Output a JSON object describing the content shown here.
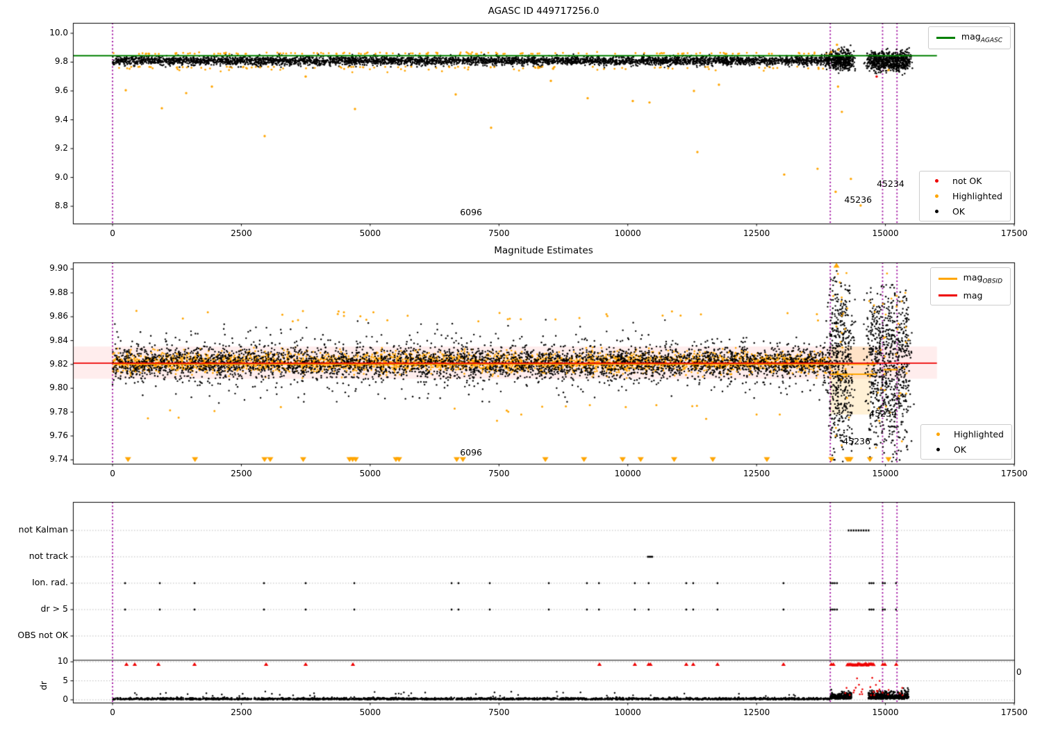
{
  "colors": {
    "green": "#008000",
    "red": "#ee0000",
    "orange": "#ffa500",
    "black": "#000000",
    "purple": "#9b009b",
    "grid": "#bbbbbb",
    "mag_band": "rgba(255,0,0,0.07)",
    "obsid_band": "rgba(255,166,0,0.16)"
  },
  "x_axis": {
    "lim": [
      -769,
      17500
    ],
    "ticks": [
      0,
      2500,
      5000,
      7500,
      10000,
      12500,
      15000,
      17500
    ],
    "tick_labels": [
      "0",
      "2500",
      "5000",
      "7500",
      "10000",
      "12500",
      "15000",
      "17500"
    ]
  },
  "vlines_x": [
    0,
    13930,
    14945,
    15225
  ],
  "chart_data": [
    {
      "type": "scatter",
      "title": "AGASC ID 449717256.0",
      "ylim": [
        8.68,
        10.072
      ],
      "ytick_values": [
        10.0,
        9.8,
        9.6,
        9.4,
        9.2,
        9.0,
        8.8
      ],
      "ytick_labels": [
        "10.0",
        "9.8",
        "9.6",
        "9.4",
        "9.2",
        "9.0",
        "8.8"
      ],
      "agasc_line": {
        "value": 9.845,
        "x_range": [
          -769,
          16000
        ]
      },
      "legend_line": {
        "label_main": "mag",
        "label_sub": "AGASC"
      },
      "legend_points": {
        "items": [
          {
            "label": "not OK",
            "color": "red"
          },
          {
            "label": "Highlighted",
            "color": "orange"
          },
          {
            "label": "OK",
            "color": "black"
          }
        ]
      },
      "annotations": [
        {
          "label": "6096",
          "x": 6958,
          "y": 8.757
        },
        {
          "label": "45236",
          "x": 14470,
          "y": 8.843
        },
        {
          "label": "45234",
          "x": 15100,
          "y": 8.954
        }
      ],
      "main_band": {
        "x_range": [
          0,
          13930
        ],
        "n": 4200,
        "center": 9.8095,
        "sigma": 0.0155,
        "clip": [
          9.7545,
          9.858
        ]
      },
      "edge_orange": {
        "n": 240,
        "above": [
          9.8565,
          9.874
        ],
        "below": [
          9.728,
          9.768
        ]
      },
      "clusters": [
        {
          "x_range": [
            13930,
            14340
          ],
          "columns": 7,
          "n": 400,
          "center": 9.812,
          "sigma": 0.034,
          "clip": [
            9.723,
            9.957
          ]
        },
        {
          "x_range": [
            14670,
            15450
          ],
          "columns": 11,
          "n": 680,
          "center": 9.806,
          "sigma": 0.034,
          "clip": [
            9.711,
            9.942
          ]
        }
      ],
      "orange_outliers": [
        [
          256,
          9.605
        ],
        [
          957,
          9.48
        ],
        [
          1429,
          9.585
        ],
        [
          1928,
          9.63
        ],
        [
          2952,
          9.287
        ],
        [
          3748,
          9.7
        ],
        [
          4705,
          9.475
        ],
        [
          6660,
          9.576
        ],
        [
          7347,
          9.345
        ],
        [
          8507,
          9.67
        ],
        [
          9221,
          9.55
        ],
        [
          10097,
          9.53
        ],
        [
          10421,
          9.52
        ],
        [
          11284,
          9.6
        ],
        [
          11351,
          9.176
        ],
        [
          11769,
          9.643
        ],
        [
          13036,
          9.02
        ],
        [
          13683,
          9.06
        ],
        [
          14034,
          8.9
        ],
        [
          14330,
          8.99
        ],
        [
          14519,
          8.805
        ],
        [
          14155,
          9.455
        ],
        [
          14080,
          9.63
        ],
        [
          13950,
          9.87
        ],
        [
          14060,
          9.92
        ],
        [
          14090,
          9.885
        ],
        [
          15060,
          9.745
        ]
      ],
      "red_outliers": [
        [
          14830,
          9.7
        ]
      ]
    },
    {
      "type": "scatter",
      "title": "Magnitude Estimates",
      "ylim": [
        9.73668,
        9.90553
      ],
      "ytick_values": [
        9.9,
        9.88,
        9.86,
        9.84,
        9.82,
        9.8,
        9.78,
        9.76,
        9.74
      ],
      "ytick_labels": [
        "9.90",
        "9.88",
        "9.86",
        "9.84",
        "9.82",
        "9.80",
        "9.78",
        "9.76",
        "9.74"
      ],
      "mag_line": {
        "value": 9.821,
        "x_range": [
          -769,
          16000
        ]
      },
      "mag_band": {
        "y_range": [
          9.808,
          9.835
        ],
        "x_range": [
          -769,
          16000
        ]
      },
      "obsid_band": {
        "x_range": [
          13930,
          14710
        ],
        "y_range": [
          9.778,
          9.835
        ]
      },
      "obsid_segments": [
        {
          "x_range": [
            0,
            14830
          ],
          "value": 9.8203
        },
        {
          "x_range": [
            13930,
            14830
          ],
          "value": 9.8118
        },
        {
          "x_range": [
            14965,
            15235
          ],
          "value": 9.8156
        }
      ],
      "legend_lines": {
        "items": [
          {
            "label_main": "mag",
            "label_sub": "OBSID",
            "color": "orange"
          },
          {
            "label_main": "mag",
            "label_sub": "",
            "color": "red"
          }
        ]
      },
      "legend_points": {
        "items": [
          {
            "label": "Highlighted",
            "color": "orange"
          },
          {
            "label": "OK",
            "color": "black"
          }
        ]
      },
      "annotations": [
        {
          "label": "6096",
          "x": 6958,
          "y": 9.7462
        },
        {
          "label": "45236",
          "x": 14442,
          "y": 9.7553
        },
        {
          "label": "45234",
          "x": 14954,
          "y": 9.7787
        }
      ],
      "core_orange": {
        "x_range": [
          0,
          13930
        ],
        "n": 3000,
        "center": 9.8215,
        "sigma": 0.0042,
        "clip": [
          9.8085,
          9.8345
        ]
      },
      "core_black": {
        "x_range": [
          0,
          13930
        ],
        "n": 4300,
        "center": 9.8215,
        "sigma_main": 0.006,
        "sigma_tail": 0.0125,
        "tail_frac": 0.3,
        "clip": [
          9.7855,
          9.858
        ]
      },
      "sparse_orange": {
        "n": 52,
        "above": [
          9.856,
          9.8655
        ],
        "below": [
          9.7725,
          9.7865
        ]
      },
      "clusters": [
        {
          "x_range": [
            13930,
            14340
          ],
          "columns": 7,
          "n": 520,
          "center": 9.822,
          "sigma": 0.037,
          "clip": [
            9.738,
            9.901
          ]
        },
        {
          "x_range": [
            14670,
            15450
          ],
          "columns": 11,
          "n": 820,
          "center": 9.82,
          "sigma": 0.036,
          "clip": [
            9.738,
            9.887
          ]
        }
      ],
      "cluster_orange_n": 70,
      "tri_down_x": [
        300,
        1600,
        2950,
        3060,
        3700,
        4600,
        4660,
        4720,
        5500,
        5560,
        6680,
        6800,
        8400,
        9150,
        9900,
        10250,
        10900,
        11650,
        12700,
        13950,
        14260,
        14290,
        14320,
        14700,
        15060
      ],
      "tri_up_x": [
        14050
      ]
    },
    {
      "type": "scatter",
      "categories": [
        "not Kalman",
        "not track",
        "Ion. rad.",
        "dr > 5",
        "OBS not OK"
      ],
      "dr_tick_values": [
        10,
        5,
        0
      ],
      "dr_tick_labels": [
        "10",
        "5",
        "0"
      ],
      "ylabel": "dr",
      "right_axis_label": "0",
      "threshold_line_dr": 10.4,
      "not_kalman_band": [
        14270,
        14700
      ],
      "not_track_band": [
        10390,
        10500
      ],
      "ion_rad_x": [
        243,
        917,
        1591,
        2939,
        3748,
        4692,
        6580,
        6714,
        7321,
        8467,
        9207,
        9440,
        10137,
        10405,
        11135,
        11270,
        11741,
        13022,
        13940,
        13978,
        14016,
        14060,
        14690,
        14730,
        14770,
        14950,
        14990,
        15205
      ],
      "dr_gt5_x": [
        243,
        917,
        1591,
        2939,
        3748,
        4692,
        6580,
        6714,
        7321,
        8467,
        9207,
        9440,
        10137,
        10405,
        11135,
        11270,
        11741,
        13022,
        13940,
        13978,
        14016,
        14060,
        14690,
        14730,
        14770,
        14950,
        14990,
        15205
      ],
      "red_clip_x": [
        270,
        431,
        890,
        1591,
        2980,
        3748,
        4665,
        9450,
        10137,
        10405,
        10440,
        11135,
        11270,
        11741,
        13022,
        13950,
        13990,
        14950,
        14990,
        15210
      ],
      "red_clip_band": [
        14265,
        14780
      ],
      "red_clip_dr": 9.4,
      "dr_main": {
        "x_range": [
          0,
          13930
        ],
        "n": 2600,
        "sigma": 0.22,
        "base": 0.08,
        "clip": 1.15,
        "spikes_n": 45,
        "spike_range": [
          0.9,
          2.2
        ]
      },
      "dr_clusters": [
        {
          "x_range": [
            13930,
            14340
          ],
          "n": 260,
          "base": 0.25,
          "sigma": 0.8,
          "clip": 3.2
        },
        {
          "x_range": [
            14670,
            15450
          ],
          "n": 430,
          "base": 0.25,
          "sigma": 0.9,
          "clip": 3.9
        }
      ],
      "dr_red": {
        "n": 28,
        "x_range": [
          14150,
          15350
        ],
        "dr_range": [
          1.2,
          7.0
        ]
      }
    }
  ]
}
